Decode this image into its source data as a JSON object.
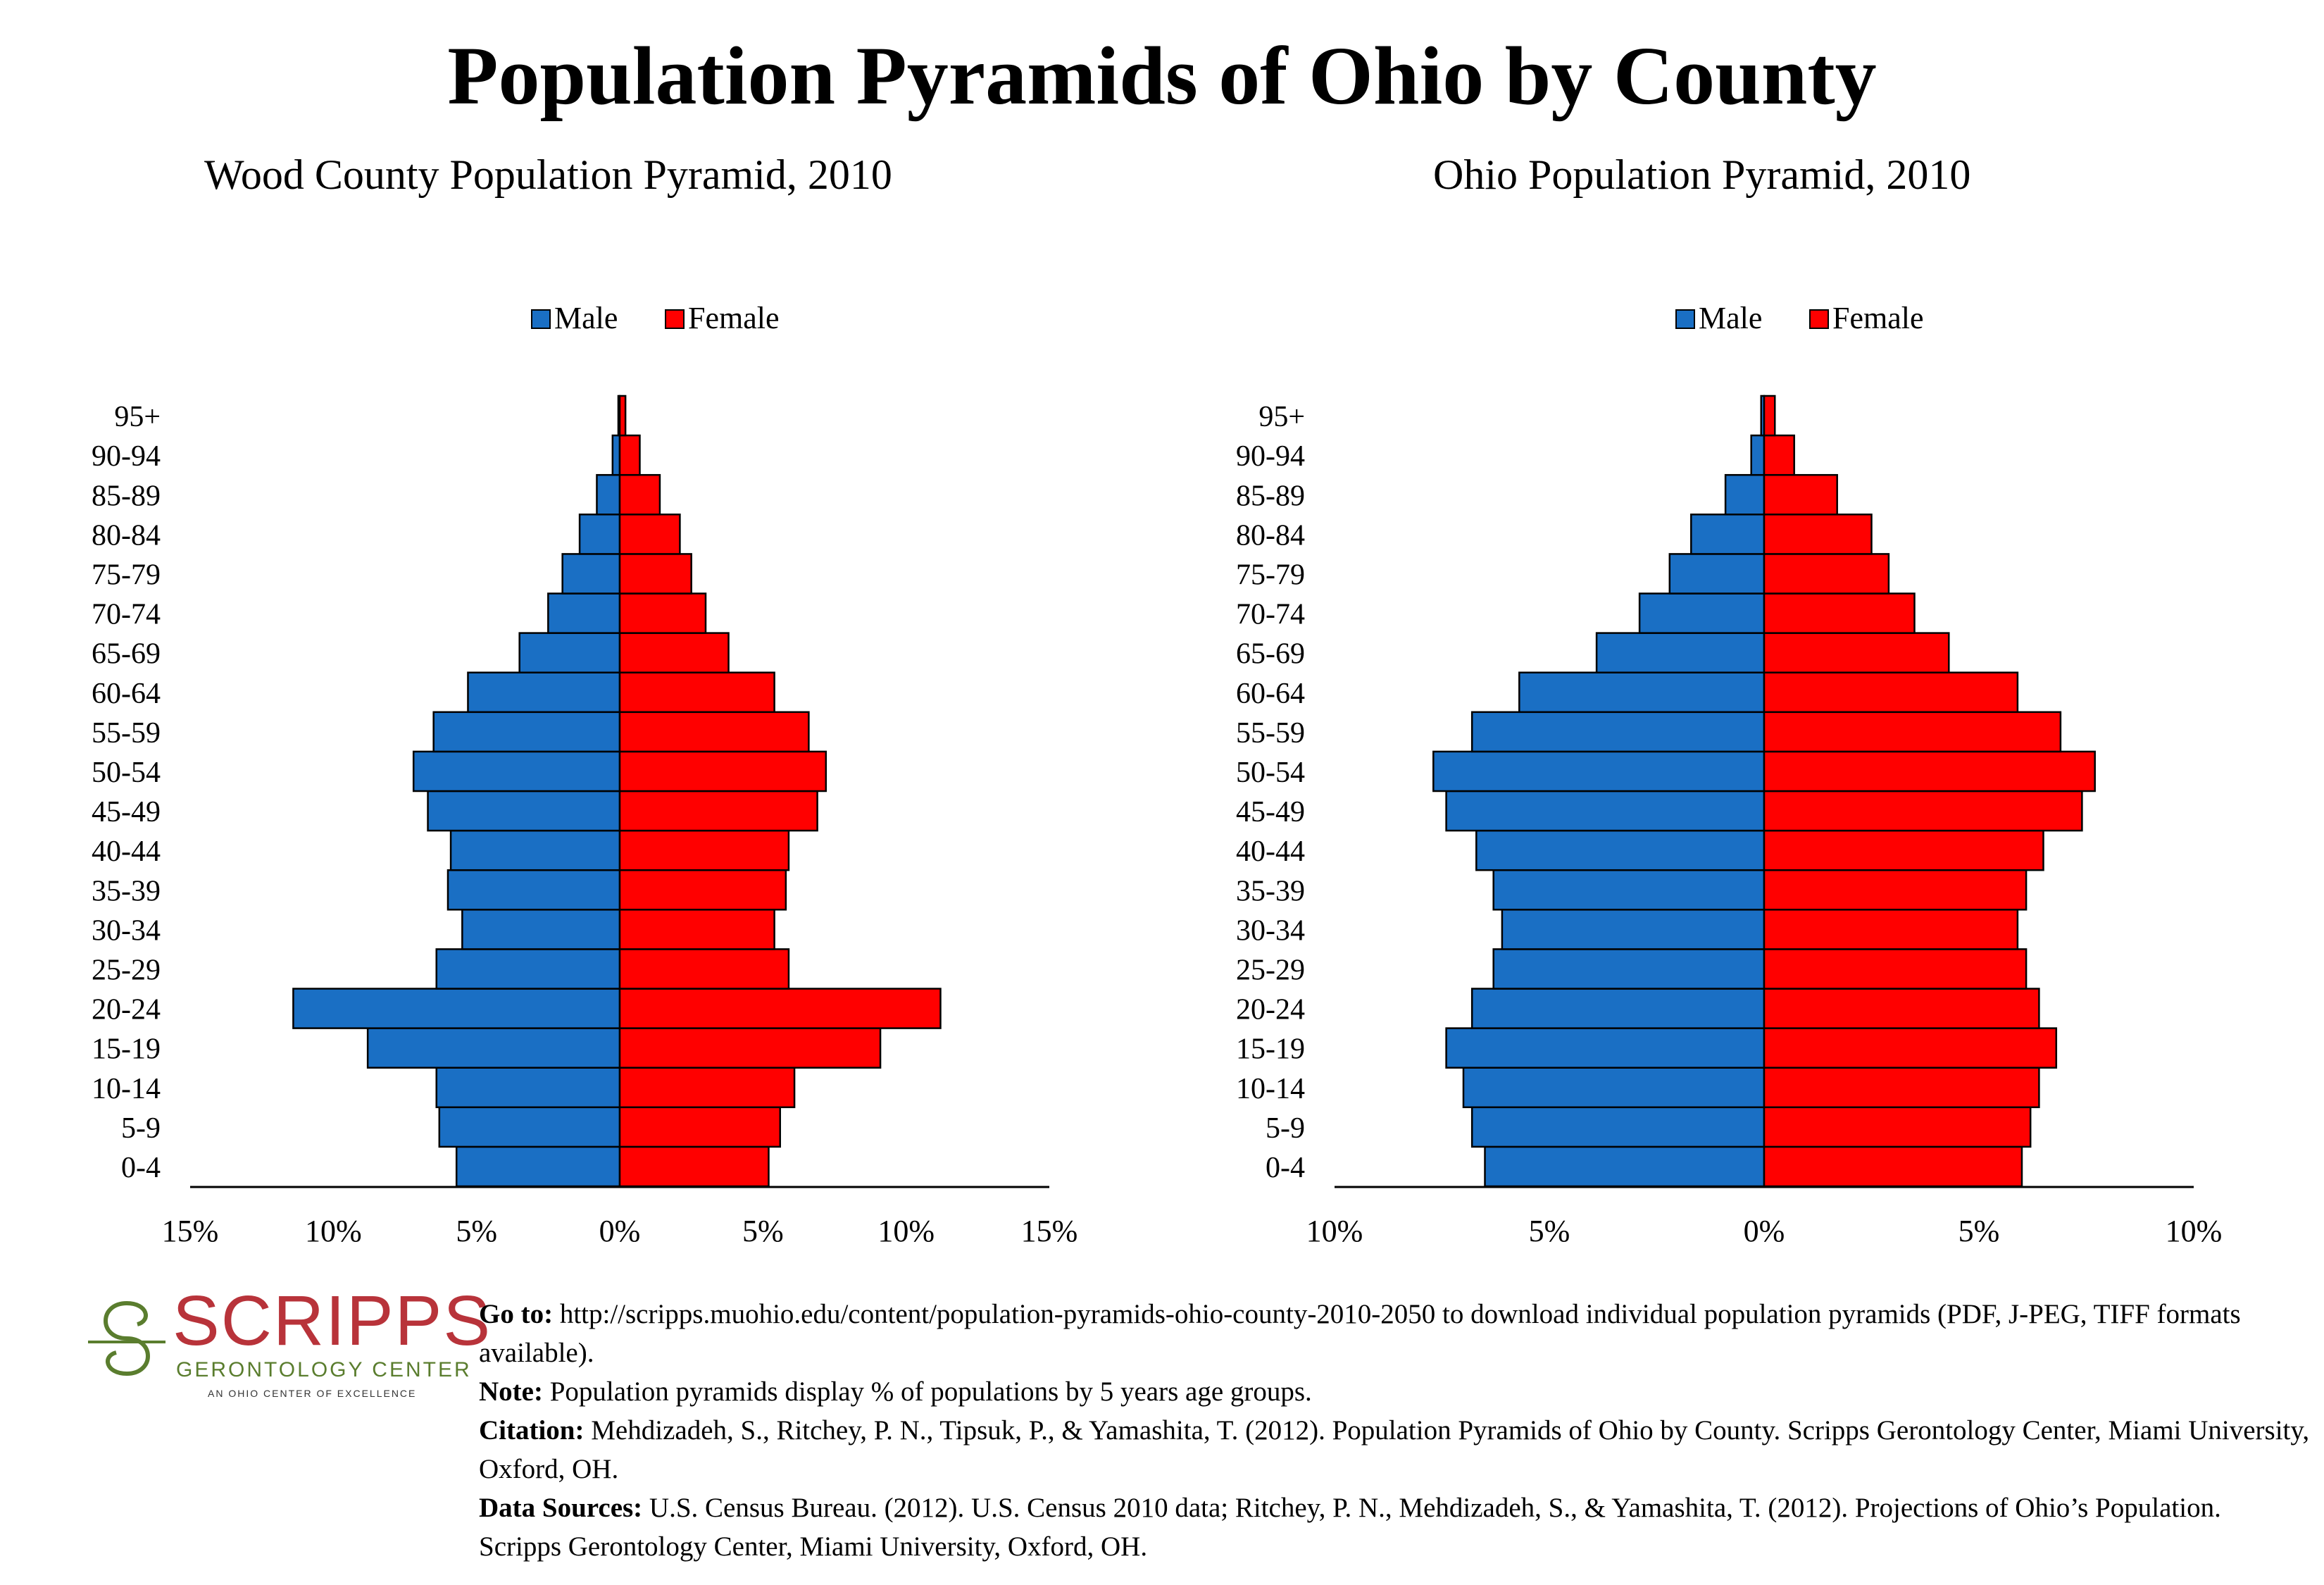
{
  "title": "Population Pyramids of Ohio by County",
  "legend": {
    "male": "Male",
    "female": "Female"
  },
  "colors": {
    "male": "#1a6fc4",
    "female": "#ff0000",
    "stroke": "#000000"
  },
  "chart_data": [
    {
      "type": "bar",
      "orientation": "horizontal-pyramid",
      "title": "Wood County Population Pyramid, 2010",
      "categories": [
        "0-4",
        "5-9",
        "10-14",
        "15-19",
        "20-24",
        "25-29",
        "30-34",
        "35-39",
        "40-44",
        "45-49",
        "50-54",
        "55-59",
        "60-64",
        "65-69",
        "70-74",
        "75-79",
        "80-84",
        "85-89",
        "90-94",
        "95+"
      ],
      "series": [
        {
          "name": "Male",
          "values": [
            5.7,
            6.3,
            6.4,
            8.8,
            11.4,
            6.4,
            5.5,
            6.0,
            5.9,
            6.7,
            7.2,
            6.5,
            5.3,
            3.5,
            2.5,
            2.0,
            1.4,
            0.8,
            0.25,
            0.05
          ]
        },
        {
          "name": "Female",
          "values": [
            5.2,
            5.6,
            6.1,
            9.1,
            11.2,
            5.9,
            5.4,
            5.8,
            5.9,
            6.9,
            7.2,
            6.6,
            5.4,
            3.8,
            3.0,
            2.5,
            2.1,
            1.4,
            0.7,
            0.2
          ]
        }
      ],
      "ticks": [
        "15%",
        "10%",
        "5%",
        "0%",
        "5%",
        "10%",
        "15%"
      ],
      "xlim": [
        -15,
        15
      ]
    },
    {
      "type": "bar",
      "orientation": "horizontal-pyramid",
      "title": "Ohio Population Pyramid, 2010",
      "categories": [
        "0-4",
        "5-9",
        "10-14",
        "15-19",
        "20-24",
        "25-29",
        "30-34",
        "35-39",
        "40-44",
        "45-49",
        "50-54",
        "55-59",
        "60-64",
        "65-69",
        "70-74",
        "75-79",
        "80-84",
        "85-89",
        "90-94",
        "95+"
      ],
      "series": [
        {
          "name": "Male",
          "values": [
            6.5,
            6.8,
            7.0,
            7.4,
            6.8,
            6.3,
            6.1,
            6.3,
            6.7,
            7.4,
            7.7,
            6.8,
            5.7,
            3.9,
            2.9,
            2.2,
            1.7,
            0.9,
            0.3,
            0.07
          ]
        },
        {
          "name": "Female",
          "values": [
            6.0,
            6.2,
            6.4,
            6.8,
            6.4,
            6.1,
            5.9,
            6.1,
            6.5,
            7.4,
            7.7,
            6.9,
            5.9,
            4.3,
            3.5,
            2.9,
            2.5,
            1.7,
            0.7,
            0.25
          ]
        }
      ],
      "ticks": [
        "10%",
        "5%",
        "0%",
        "5%",
        "10%"
      ],
      "xlim": [
        -10,
        10
      ]
    }
  ],
  "logo": {
    "name": "SCRIPPS",
    "subtitle": "GERONTOLOGY CENTER",
    "tagline": "AN OHIO CENTER OF EXCELLENCE"
  },
  "footer": {
    "goto_label": "Go to:",
    "goto_text": " http://scripps.muohio.edu/content/population-pyramids-ohio-county-2010-2050 to download individual population pyramids (PDF, J-PEG, TIFF formats available).",
    "note_label": "Note:",
    "note_text": " Population pyramids display % of populations by 5 years age groups.",
    "citation_label": "Citation:",
    "citation_text": " Mehdizadeh, S., Ritchey, P. N., Tipsuk, P., & Yamashita, T. (2012). Population Pyramids of Ohio by County. Scripps Gerontology Center, Miami University, Oxford, OH.",
    "sources_label": "Data Sources:",
    "sources_text": " U.S. Census Bureau. (2012). U.S. Census 2010 data; Ritchey, P. N., Mehdizadeh, S., & Yamashita, T. (2012). Projections of Ohio’s Population. Scripps Gerontology Center, Miami University, Oxford, OH."
  }
}
